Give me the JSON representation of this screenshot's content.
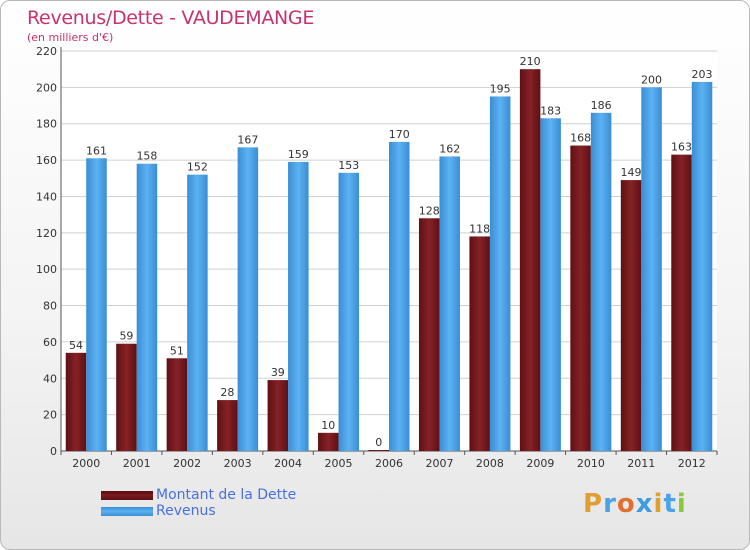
{
  "title": "Revenus/Dette - VAUDEMANGE",
  "subtitle": "(en milliers d'€)",
  "brand": "Proxiti",
  "colors": {
    "debt": "#7a1a1e",
    "revenue": "#4aa3e6",
    "title": "#c8326e",
    "grid": "#d0d0d0",
    "legend_text": "#4a6fe0"
  },
  "chart_data": {
    "type": "bar",
    "title": "Revenus/Dette - VAUDEMANGE",
    "subtitle": "(en milliers d'€)",
    "categories": [
      "2000",
      "2001",
      "2002",
      "2003",
      "2004",
      "2005",
      "2006",
      "2007",
      "2008",
      "2009",
      "2010",
      "2011",
      "2012"
    ],
    "series": [
      {
        "name": "Montant de la Dette",
        "values": [
          54,
          59,
          51,
          28,
          39,
          10,
          0,
          128,
          118,
          210,
          168,
          149,
          163
        ]
      },
      {
        "name": "Revenus",
        "values": [
          161,
          158,
          152,
          167,
          159,
          153,
          170,
          162,
          195,
          183,
          186,
          200,
          203
        ]
      }
    ],
    "ylim": [
      0,
      220
    ],
    "yticks": [
      0,
      20,
      40,
      60,
      80,
      100,
      120,
      140,
      160,
      180,
      200,
      220
    ],
    "grid": true,
    "legend_position": "bottom-left"
  }
}
